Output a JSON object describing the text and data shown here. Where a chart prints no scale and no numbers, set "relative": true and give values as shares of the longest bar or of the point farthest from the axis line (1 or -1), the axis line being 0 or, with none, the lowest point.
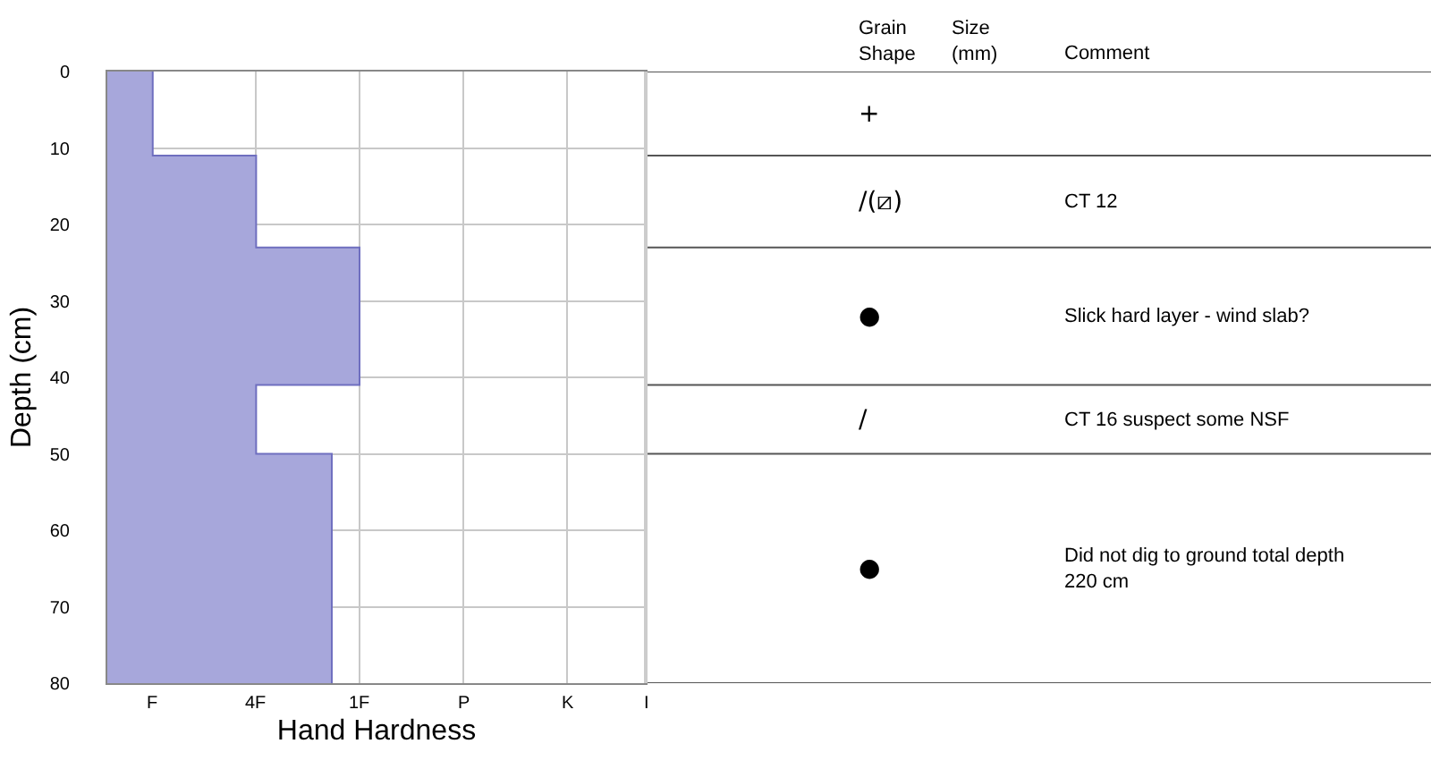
{
  "chart_data": [
    {
      "type": "area",
      "orientation": "horizontal",
      "xlabel": "Hand Hardness",
      "ylabel": "Depth (cm)",
      "relative": true,
      "series": [
        {
          "color": "#a7a7db",
          "x": [
            0,
            11,
            11,
            23,
            23,
            41,
            41,
            50,
            50,
            80
          ],
          "values": [
            0.18,
            0.18,
            0.59,
            0.59,
            1,
            1,
            0.59,
            0.59,
            0.89,
            0.89
          ]
        }
      ],
      "annotations": [
        "F",
        "4F",
        "1F",
        "P",
        "K",
        "I"
      ],
      "ylim": [
        80,
        0
      ],
      "yticks": [
        0,
        10,
        20,
        30,
        40,
        50,
        60,
        70,
        80
      ],
      "grid": true
    },
    {
      "type": "other",
      "categories": [
        "Grain\nShape",
        "Size\n(mm)",
        "Comment"
      ],
      "cell_labels": [
        [
          "+",
          null,
          null
        ],
        [
          "/(⧄)",
          null,
          "CT 12"
        ],
        [
          "●",
          null,
          "Slick hard layer - wind slab?"
        ],
        [
          "/",
          null,
          "CT 16 suspect some NSF"
        ],
        [
          "●",
          null,
          "Did not dig to ground total depth\n220 cm"
        ]
      ]
    }
  ]
}
